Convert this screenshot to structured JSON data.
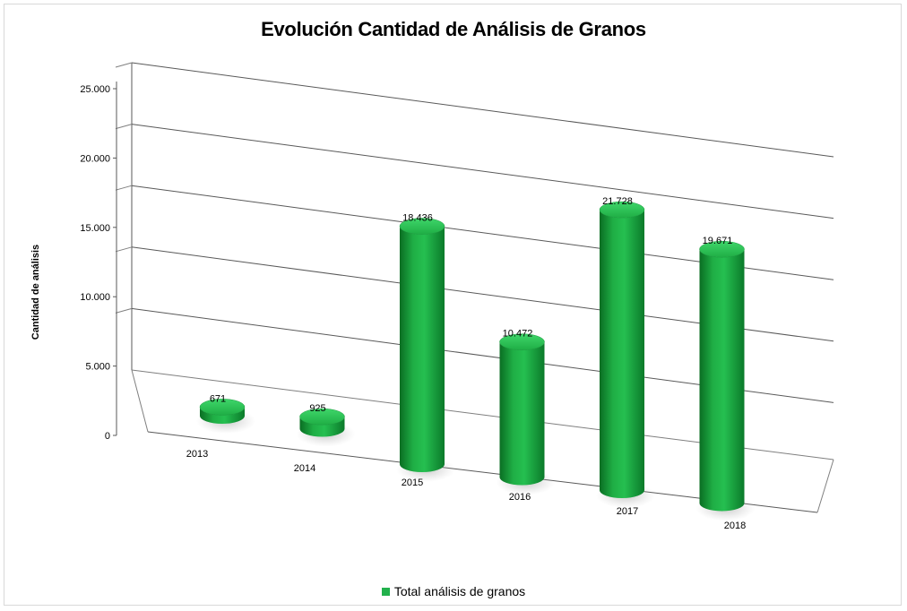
{
  "chart_data": {
    "type": "bar",
    "title": "Evolución Cantidad de Análisis de Granos",
    "ylabel": "Cantidad  de análisis",
    "xlabel": "",
    "categories": [
      "2013",
      "2014",
      "2015",
      "2016",
      "2017",
      "2018"
    ],
    "series": [
      {
        "name": "Total análisis de granos",
        "values": [
          671,
          925,
          18436,
          10472,
          21728,
          19671
        ],
        "data_labels": [
          "671",
          "925",
          "18.436",
          "10.472",
          "21.728",
          "19.671"
        ]
      }
    ],
    "y_ticks": [
      "0",
      "5.000",
      "10.000",
      "15.000",
      "20.000",
      "25.000"
    ],
    "ylim": [
      0,
      25000
    ],
    "grid": true,
    "legend_position": "bottom",
    "style": "3d-cylinder",
    "bar_color": "#22b14c"
  }
}
